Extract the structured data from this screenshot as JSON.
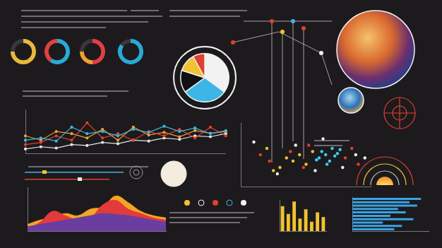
{
  "chart_data": [
    {
      "type": "doughnut",
      "values": [
        75,
        25
      ],
      "colors": [
        "#e8b93a",
        "#3a373c"
      ]
    },
    {
      "type": "doughnut",
      "values": [
        60,
        40
      ],
      "colors": [
        "#2aa9d6",
        "#e04040"
      ]
    },
    {
      "type": "doughnut",
      "values": [
        50,
        25,
        25
      ],
      "colors": [
        "#e04040",
        "#f0a030",
        "#3a373c"
      ]
    },
    {
      "type": "doughnut",
      "values": [
        85,
        15
      ],
      "colors": [
        "#2aa9d6",
        "#3a373c"
      ]
    },
    {
      "type": "pie",
      "values": [
        35,
        30,
        15,
        12,
        8
      ],
      "colors": [
        "#f2f2f2",
        "#3cb6e6",
        "#111111",
        "#f2c230",
        "#e0402f"
      ]
    },
    {
      "type": "line",
      "categories": [
        null,
        null,
        null,
        null,
        null,
        null,
        null,
        null,
        null,
        null,
        null,
        null,
        null,
        null
      ],
      "series": [
        {
          "color": "#3cb6e6",
          "values": [
            30,
            35,
            28,
            60,
            45,
            50,
            40,
            55,
            48,
            62,
            50,
            58,
            45,
            52
          ]
        },
        {
          "color": "#e0402f",
          "values": [
            20,
            25,
            40,
            30,
            70,
            35,
            45,
            30,
            50,
            40,
            55,
            35,
            60,
            40
          ]
        },
        {
          "color": "#f0a030",
          "values": [
            40,
            30,
            50,
            45,
            35,
            55,
            30,
            60,
            42,
            48,
            38,
            52,
            46,
            50
          ]
        },
        {
          "color": "#e6e6e6",
          "values": [
            10,
            15,
            12,
            20,
            18,
            25,
            22,
            30,
            28,
            35,
            32,
            40,
            38,
            45
          ]
        }
      ],
      "ylim": [
        0,
        100
      ],
      "yticks": [
        0,
        100
      ],
      "grid": false,
      "tick_labels": false
    },
    {
      "type": "area",
      "categories": [
        null,
        null,
        null,
        null,
        null,
        null,
        null,
        null,
        null,
        null,
        null,
        null
      ],
      "series": [
        {
          "color": "#6a3ea1",
          "values": [
            10,
            15,
            20,
            25,
            30,
            35,
            40,
            38,
            35,
            30,
            25,
            20
          ]
        },
        {
          "color": "#e23b3b",
          "values": [
            5,
            20,
            45,
            35,
            25,
            30,
            60,
            70,
            50,
            40,
            30,
            25
          ]
        },
        {
          "color": "#f5a524",
          "values": [
            15,
            25,
            30,
            40,
            35,
            50,
            55,
            80,
            65,
            45,
            35,
            30
          ]
        }
      ],
      "ylim": [
        0,
        100
      ],
      "yticks": [
        0,
        100
      ],
      "grid": false,
      "tick_labels": false
    },
    {
      "type": "scatter",
      "series": [
        {
          "color": "#3cd0f0",
          "x": [
            60,
            62,
            65,
            68,
            70,
            72,
            74,
            58,
            66,
            76
          ],
          "values": [
            45,
            55,
            50,
            40,
            60,
            48,
            52,
            42,
            35,
            58
          ]
        },
        {
          "color": "#f2c230",
          "x": [
            30,
            35,
            40,
            45,
            50,
            55,
            25,
            20
          ],
          "values": [
            30,
            45,
            40,
            50,
            35,
            55,
            25,
            60
          ]
        },
        {
          "color": "#e0402f",
          "x": [
            15,
            22,
            38,
            48,
            52,
            80,
            85,
            90
          ],
          "values": [
            50,
            40,
            55,
            30,
            65,
            45,
            60,
            35
          ]
        },
        {
          "color": "#f2f2f2",
          "x": [
            10,
            28,
            42,
            57,
            63,
            78,
            88,
            95
          ],
          "values": [
            70,
            20,
            65,
            25,
            75,
            30,
            50,
            45
          ]
        }
      ],
      "xlim": [
        0,
        100
      ],
      "xticks": [
        0,
        100
      ],
      "ylim": [
        0,
        100
      ],
      "yticks": [
        0,
        100
      ],
      "grid": false,
      "tick_labels": false
    },
    {
      "type": "bar",
      "categories": [
        null,
        null,
        null,
        null,
        null,
        null,
        null,
        null
      ],
      "values": [
        80,
        55,
        95,
        40,
        70,
        30,
        60,
        45
      ],
      "color": "#f2c230",
      "ylim": [
        0,
        100
      ],
      "yticks": [
        0,
        100
      ],
      "grid": false,
      "tick_labels": false
    },
    {
      "type": "bar",
      "orientation": "horizontal",
      "categories": [
        null,
        null,
        null,
        null,
        null,
        null,
        null,
        null,
        null,
        null
      ],
      "values": [
        90,
        75,
        85,
        60,
        70,
        50,
        80,
        40,
        65,
        55
      ],
      "color": "#3aa3e0",
      "xlim": [
        0,
        100
      ],
      "xticks": [
        0,
        100
      ],
      "grid": false,
      "tick_labels": false
    }
  ]
}
